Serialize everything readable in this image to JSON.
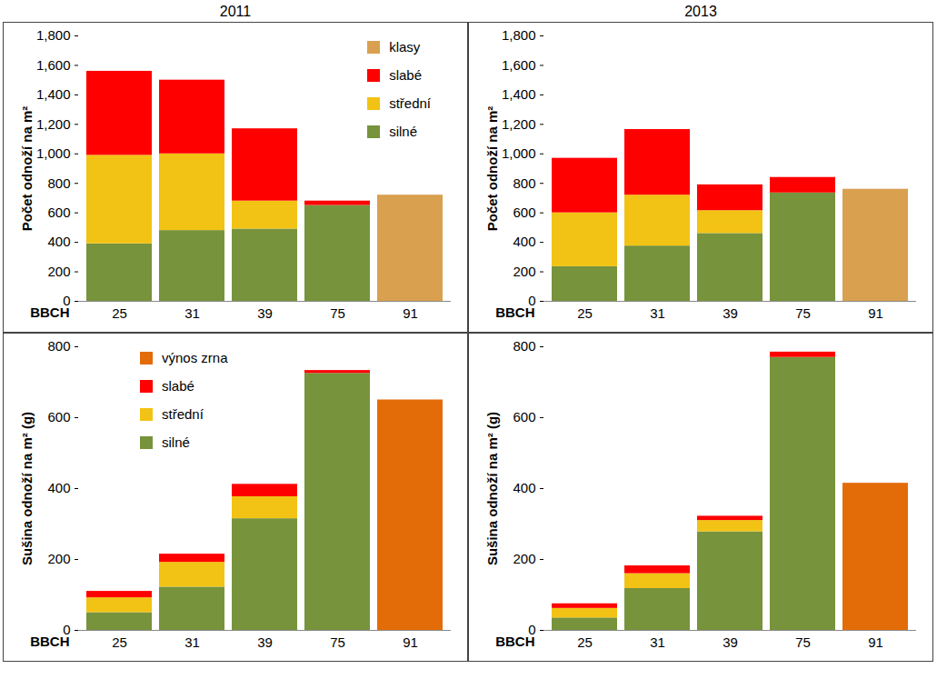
{
  "chart_data": [
    {
      "type": "bar",
      "title": "2011",
      "stacked": true,
      "legend": "top-right",
      "x_label": "BBCH",
      "y_label": "Počet odnoží na m²",
      "categories": [
        "25",
        "31",
        "39",
        "75",
        "91"
      ],
      "ylim": [
        0,
        1800
      ],
      "yticks": [
        0,
        200,
        400,
        600,
        800,
        1000,
        1200,
        1400,
        1600,
        1800
      ],
      "series": [
        {
          "name": "silné",
          "color": "#77933c",
          "values": [
            390,
            480,
            490,
            650,
            null
          ]
        },
        {
          "name": "střední",
          "color": "#f2c314",
          "values": [
            600,
            520,
            190,
            0,
            null
          ]
        },
        {
          "name": "slabé",
          "color": "#ff0000",
          "values": [
            570,
            500,
            490,
            30,
            null
          ]
        },
        {
          "name": "klasy",
          "color": "#d9a04f",
          "values": [
            null,
            null,
            null,
            null,
            720
          ]
        }
      ]
    },
    {
      "type": "bar",
      "title": "2013",
      "stacked": true,
      "x_label": "BBCH",
      "y_label": "Počet odnoží na m²",
      "categories": [
        "25",
        "31",
        "39",
        "75",
        "91"
      ],
      "ylim": [
        0,
        1800
      ],
      "yticks": [
        0,
        200,
        400,
        600,
        800,
        1000,
        1200,
        1400,
        1600,
        1800
      ],
      "series": [
        {
          "name": "silné",
          "color": "#77933c",
          "values": [
            235,
            375,
            460,
            735,
            null
          ]
        },
        {
          "name": "střední",
          "color": "#f2c314",
          "values": [
            365,
            345,
            155,
            0,
            null
          ]
        },
        {
          "name": "slabé",
          "color": "#ff0000",
          "values": [
            370,
            445,
            175,
            105,
            null
          ]
        },
        {
          "name": "klasy",
          "color": "#d9a04f",
          "values": [
            null,
            null,
            null,
            null,
            760
          ]
        }
      ]
    },
    {
      "type": "bar",
      "stacked": true,
      "legend": "top-left",
      "x_label": "BBCH",
      "y_label": "Sušina odnoží na m² (g)",
      "categories": [
        "25",
        "31",
        "39",
        "75",
        "91"
      ],
      "ylim": [
        0,
        800
      ],
      "yticks": [
        0,
        200,
        400,
        600,
        800
      ],
      "series": [
        {
          "name": "silné",
          "color": "#77933c",
          "values": [
            50,
            122,
            315,
            725,
            null
          ]
        },
        {
          "name": "střední",
          "color": "#f2c314",
          "values": [
            42,
            70,
            62,
            0,
            null
          ]
        },
        {
          "name": "slabé",
          "color": "#ff0000",
          "values": [
            18,
            23,
            35,
            8,
            null
          ]
        },
        {
          "name": "výnos zrna",
          "color": "#e36c09",
          "values": [
            null,
            null,
            null,
            null,
            650
          ]
        }
      ]
    },
    {
      "type": "bar",
      "stacked": true,
      "x_label": "BBCH",
      "y_label": "Sušina odnoží na m² (g)",
      "categories": [
        "25",
        "31",
        "39",
        "75",
        "91"
      ],
      "ylim": [
        0,
        800
      ],
      "yticks": [
        0,
        200,
        400,
        600,
        800
      ],
      "series": [
        {
          "name": "silné",
          "color": "#77933c",
          "values": [
            35,
            118,
            278,
            770,
            null
          ]
        },
        {
          "name": "střední",
          "color": "#f2c314",
          "values": [
            27,
            42,
            32,
            0,
            null
          ]
        },
        {
          "name": "slabé",
          "color": "#ff0000",
          "values": [
            13,
            22,
            12,
            15,
            null
          ]
        },
        {
          "name": "výnos zrna",
          "color": "#e36c09",
          "values": [
            null,
            null,
            null,
            null,
            415
          ]
        }
      ]
    }
  ]
}
